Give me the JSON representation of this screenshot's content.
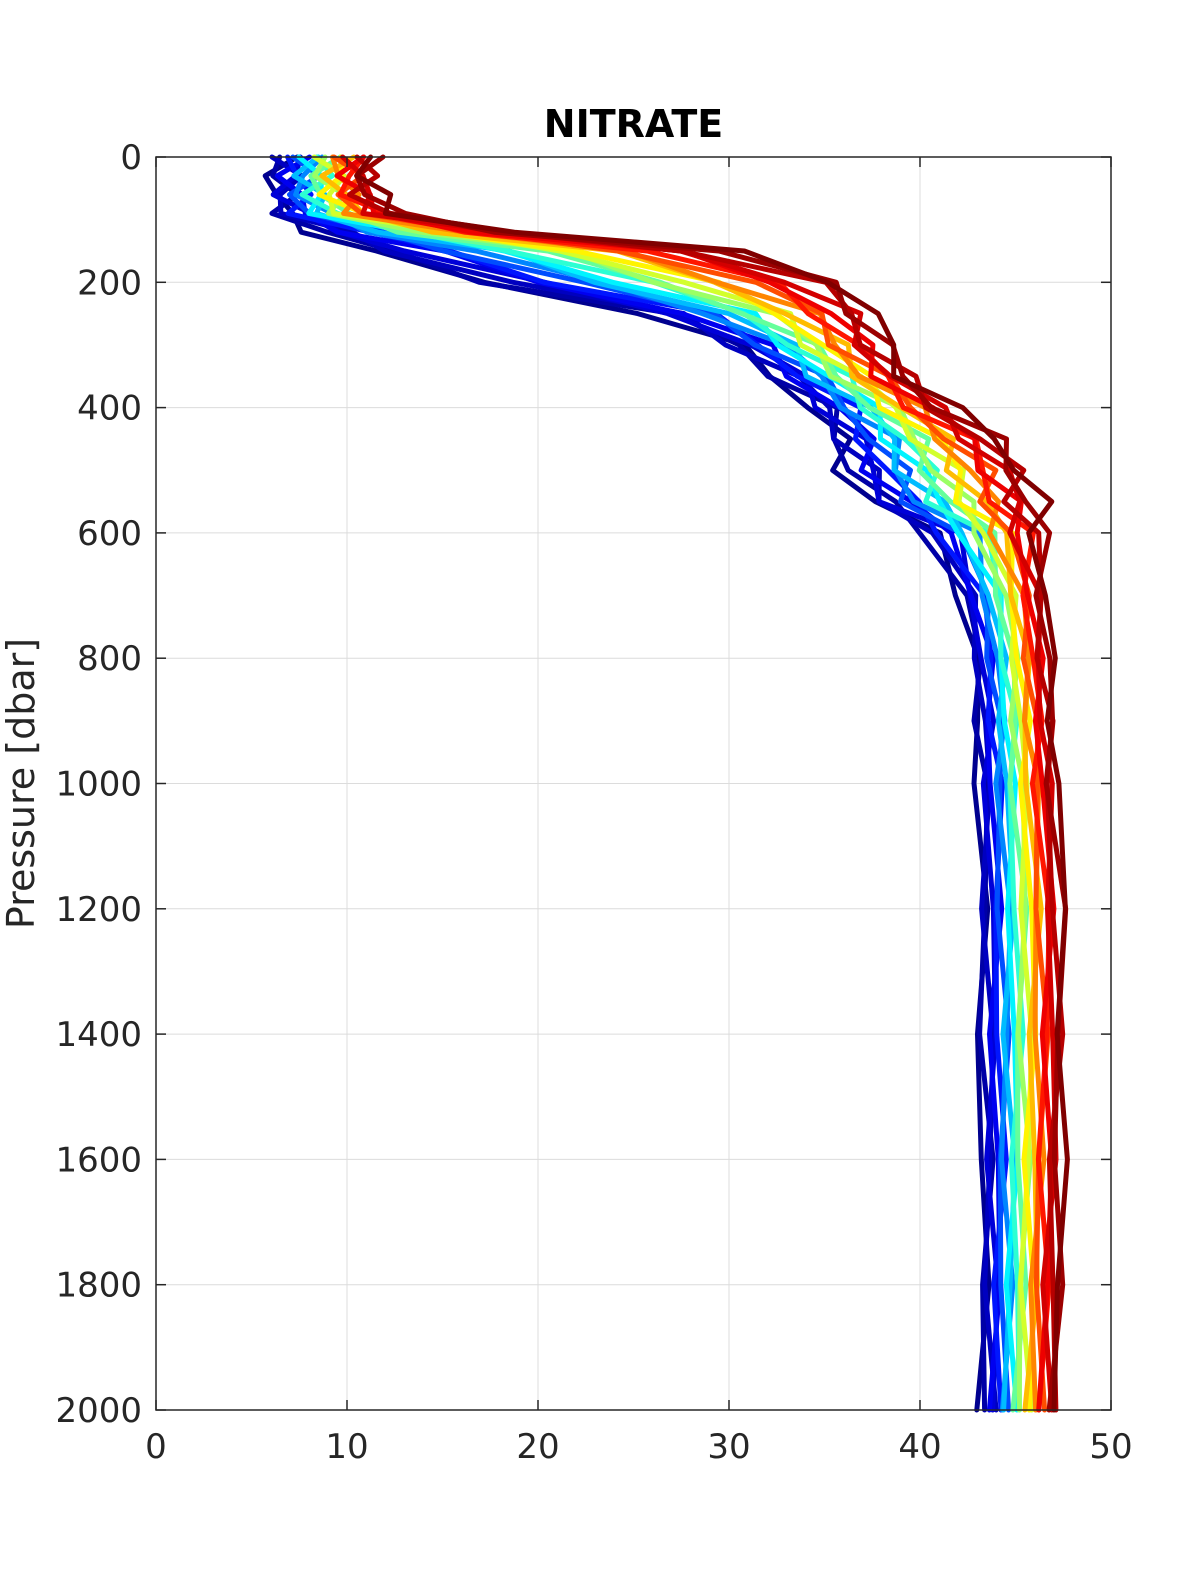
{
  "chart_data": {
    "type": "line",
    "title": "NITRATE",
    "xlabel": "",
    "ylabel": "Pressure [dbar]",
    "xlim": [
      0,
      50
    ],
    "ylim": [
      0,
      2000
    ],
    "y_reversed": true,
    "grid": true,
    "legend": "none",
    "xticks": [
      0,
      10,
      20,
      30,
      40,
      50
    ],
    "yticks": [
      0,
      200,
      400,
      600,
      800,
      1000,
      1200,
      1400,
      1600,
      1800,
      2000
    ],
    "colormap": "jet",
    "colormap_stops": [
      "#00008f",
      "#0000ff",
      "#00ffff",
      "#ffff00",
      "#ff0000",
      "#800000"
    ],
    "series_count": 24,
    "pressure_levels": [
      0,
      30,
      60,
      90,
      120,
      150,
      200,
      250,
      300,
      350,
      400,
      450,
      500,
      550,
      600,
      700,
      800,
      900,
      1000,
      1200,
      1400,
      1600,
      1800,
      2000
    ],
    "envelope": {
      "first_profile": [
        6.5,
        6.4,
        6.3,
        6.5,
        8.5,
        11.0,
        17.0,
        26.0,
        30.0,
        32.5,
        34.5,
        35.5,
        36.2,
        37.5,
        40.5,
        42.2,
        42.8,
        43.0,
        43.1,
        43.2,
        43.2,
        43.3,
        43.3,
        43.3
      ],
      "last_profile": [
        11.2,
        11.2,
        11.4,
        12.5,
        19.0,
        30.0,
        36.0,
        37.5,
        38.2,
        39.5,
        41.5,
        44.0,
        45.5,
        46.0,
        46.3,
        46.6,
        46.8,
        47.0,
        47.1,
        47.5,
        47.5,
        47.4,
        47.3,
        47.2
      ]
    }
  }
}
